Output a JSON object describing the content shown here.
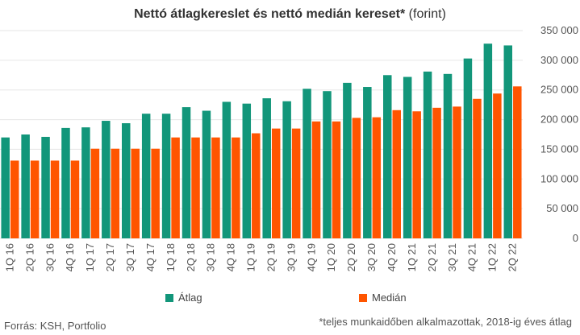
{
  "title": {
    "main": "Nettó átlagkereslet és nettó medián kereset*",
    "suffix": " (forint)"
  },
  "footer": {
    "source": "Forrás: KSH, Portfolio",
    "note": "*teljes munkaidőben alkalmazottak, 2018-ig éves átlag"
  },
  "colors": {
    "atlag": "#12967a",
    "median": "#ff5500",
    "grid": "#e6e6e6",
    "text": "#555555"
  },
  "chart_data": {
    "type": "bar",
    "categories": [
      "1Q 16",
      "2Q 16",
      "3Q 16",
      "4Q 16",
      "1Q 17",
      "2Q 17",
      "3Q 17",
      "4Q 17",
      "1Q 18",
      "2Q 18",
      "3Q 18",
      "4Q 18",
      "1Q 19",
      "2Q 19",
      "3Q 19",
      "4Q 19",
      "1Q 20",
      "2Q 20",
      "3Q 20",
      "4Q 20",
      "1Q 21",
      "2Q 21",
      "3Q 21",
      "4Q 21",
      "1Q 22",
      "2Q 22"
    ],
    "series": [
      {
        "name": "Átlag",
        "values": [
          170000,
          175000,
          171000,
          186000,
          187000,
          198000,
          194000,
          210000,
          210000,
          221000,
          215000,
          230000,
          227000,
          236000,
          231000,
          252000,
          248000,
          262000,
          255000,
          275000,
          272000,
          281000,
          277000,
          303000,
          328000,
          325000
        ]
      },
      {
        "name": "Medián",
        "values": [
          131000,
          131000,
          131000,
          131000,
          151000,
          151000,
          151000,
          151000,
          170000,
          170000,
          170000,
          170000,
          177000,
          185000,
          185000,
          197000,
          197000,
          203000,
          204000,
          216000,
          214000,
          220000,
          222000,
          235000,
          244000,
          256000
        ]
      }
    ],
    "ylim": [
      0,
      350000
    ],
    "yticks": [
      "0",
      "50 000",
      "100 000",
      "150 000",
      "200 000",
      "250 000",
      "300 000",
      "350 000"
    ],
    "ytick_values": [
      0,
      50000,
      100000,
      150000,
      200000,
      250000,
      300000,
      350000
    ],
    "grid": true,
    "legend_position": "bottom"
  }
}
